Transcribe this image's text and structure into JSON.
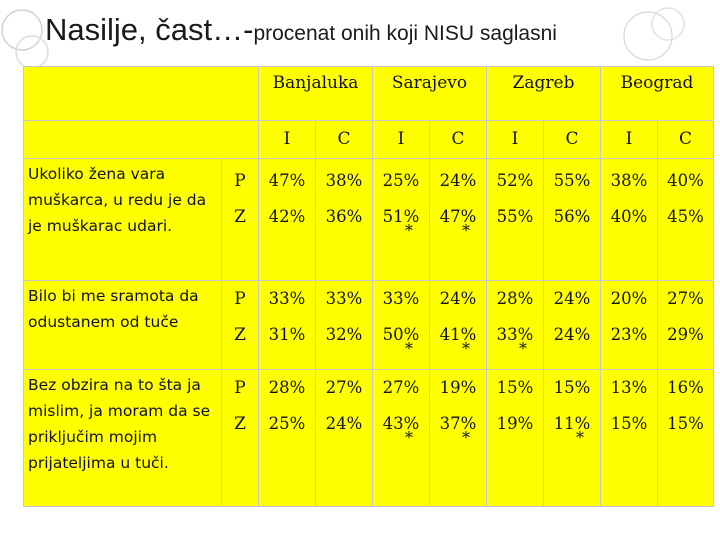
{
  "title": {
    "main": "Nasilje, čast…-",
    "sub": "procenat onih koji NISU saglasni"
  },
  "cities": [
    "Banjaluka",
    "Sarajevo",
    "Zagreb",
    "Beograd"
  ],
  "subcols": [
    "I",
    "C",
    "I",
    "C",
    "I",
    "C",
    "I",
    "C"
  ],
  "rows": [
    {
      "question": "Ukoliko žena vara muškarca, u redu je da je muškarac udari.",
      "lines": [
        {
          "group": "P",
          "values": [
            "47%",
            "38%",
            "25%",
            "24%",
            "52%",
            "55%",
            "38%",
            "40%"
          ],
          "stars": [
            "",
            "",
            "",
            "",
            "",
            "",
            "",
            ""
          ]
        },
        {
          "group": "Z",
          "values": [
            "42%",
            "36%",
            "51%",
            "47%",
            "55%",
            "56%",
            "40%",
            "45%"
          ],
          "stars": [
            "",
            "",
            "*",
            "*",
            "",
            "",
            "",
            ""
          ]
        }
      ]
    },
    {
      "question": "Bilo bi me sramota da odustanem od tuče",
      "lines": [
        {
          "group": "P",
          "values": [
            "33%",
            "33%",
            "33%",
            "24%",
            "28%",
            "24%",
            "20%",
            "27%"
          ],
          "stars": [
            "",
            "",
            "",
            "",
            "",
            "",
            "",
            ""
          ]
        },
        {
          "group": "Z",
          "values": [
            "31%",
            "32%",
            "50%",
            "41%",
            "33%",
            "24%",
            "23%",
            "29%"
          ],
          "stars": [
            "",
            "",
            "*",
            "*",
            "*",
            "",
            "",
            ""
          ]
        }
      ]
    },
    {
      "question": "Bez obzira na to šta ja mislim, ja moram da se priključim mojim prijateljima u tuči.",
      "lines": [
        {
          "group": "P",
          "values": [
            "28%",
            "27%",
            "27%",
            "19%",
            "15%",
            "15%",
            "13%",
            "16%"
          ],
          "stars": [
            "",
            "",
            "",
            "",
            "",
            "",
            "",
            ""
          ]
        },
        {
          "group": "Z",
          "values": [
            "25%",
            "24%",
            "43%",
            "37%",
            "19%",
            "11%",
            "15%",
            "15%"
          ],
          "stars": [
            "",
            "",
            "*",
            "*",
            "",
            "*",
            "",
            ""
          ]
        }
      ]
    }
  ]
}
